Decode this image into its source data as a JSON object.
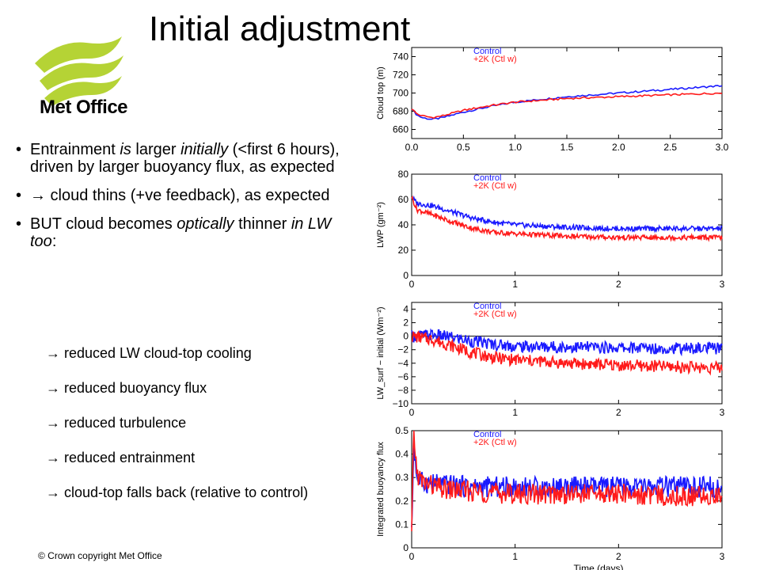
{
  "slide": {
    "title": "Initial adjustment",
    "logo_text": "Met Office",
    "copyright": "© Crown copyright   Met Office",
    "colors": {
      "control": "#1a1aff",
      "warm": "#ff1a1a",
      "logo_green": "#b5d335"
    },
    "bullets": [
      {
        "parts": [
          "Entrainment ",
          "is",
          " larger ",
          "initially",
          " (<first 6 hours), driven by larger buoyancy flux, as expected"
        ]
      },
      {
        "text": "→ cloud thins (+ve feedback), as expected"
      },
      {
        "parts": [
          "BUT cloud becomes ",
          "optically",
          " thinner ",
          "in LW too",
          ":"
        ]
      }
    ],
    "sub_items": [
      "→ reduced LW cloud-top cooling",
      "→ reduced buoyancy flux",
      "→ reduced turbulence",
      "→ reduced entrainment",
      "→ cloud-top falls back (relative to control)"
    ]
  },
  "chart_data": [
    {
      "type": "line",
      "ylabel": "Cloud top (m)",
      "xlim": [
        0,
        3
      ],
      "ylim": [
        650,
        750
      ],
      "xticks": [
        "0.0",
        "0.5",
        "1.0",
        "1.5",
        "2.0",
        "2.5",
        "3.0"
      ],
      "xtick_values": [
        0,
        0.5,
        1,
        1.5,
        2,
        2.5,
        3
      ],
      "yticks": [
        660,
        680,
        700,
        720,
        740
      ],
      "series": [
        {
          "name": "Control",
          "color": "#1a1aff",
          "x": [
            0,
            0.05,
            0.1,
            0.2,
            0.3,
            0.5,
            0.75,
            1.0,
            1.25,
            1.5,
            1.75,
            2.0,
            2.25,
            2.5,
            2.75,
            3.0
          ],
          "y": [
            683,
            676,
            673,
            671,
            673,
            679,
            685,
            690,
            693,
            696,
            698,
            700,
            702,
            704,
            706,
            708
          ]
        },
        {
          "name": "+2K (Ctl w)",
          "color": "#ff1a1a",
          "x": [
            0,
            0.05,
            0.1,
            0.2,
            0.3,
            0.5,
            0.75,
            1.0,
            1.25,
            1.5,
            1.75,
            2.0,
            2.25,
            2.5,
            2.75,
            3.0
          ],
          "y": [
            683,
            677,
            675,
            673,
            675,
            681,
            686,
            690,
            692,
            694,
            695,
            696,
            697,
            698,
            699,
            700
          ]
        }
      ]
    },
    {
      "type": "line",
      "ylabel": "LWP (gm⁻²)",
      "xlim": [
        0,
        3
      ],
      "ylim": [
        0,
        80
      ],
      "xticks": [
        "0",
        "1",
        "2",
        "3"
      ],
      "xtick_values": [
        0,
        1,
        2,
        3
      ],
      "yticks": [
        0,
        20,
        40,
        60,
        80
      ],
      "series": [
        {
          "name": "Control",
          "color": "#1a1aff",
          "x": [
            0,
            0.05,
            0.2,
            0.4,
            0.6,
            0.8,
            1.0,
            1.5,
            2.0,
            2.5,
            3.0
          ],
          "y": [
            62,
            57,
            55,
            50,
            45,
            42,
            40,
            38,
            37,
            37,
            37
          ]
        },
        {
          "name": "+2K (Ctl w)",
          "color": "#ff1a1a",
          "x": [
            0,
            0.05,
            0.2,
            0.4,
            0.6,
            0.8,
            1.0,
            1.5,
            2.0,
            2.5,
            3.0
          ],
          "y": [
            62,
            52,
            48,
            42,
            37,
            34,
            33,
            31,
            30,
            30,
            30
          ]
        }
      ]
    },
    {
      "type": "line",
      "ylabel": "LW_surf − initial (Wm⁻²)",
      "xlim": [
        0,
        3
      ],
      "ylim": [
        -10,
        5
      ],
      "xticks": [
        "0",
        "1",
        "2",
        "3"
      ],
      "xtick_values": [
        0,
        1,
        2,
        3
      ],
      "yticks": [
        -10,
        -8,
        -6,
        -4,
        -2,
        0,
        2,
        4
      ],
      "zero_line": true,
      "series": [
        {
          "name": "Control",
          "color": "#1a1aff",
          "x": [
            0,
            0.2,
            0.4,
            0.6,
            0.8,
            1.0,
            1.5,
            2.0,
            2.5,
            3.0
          ],
          "y": [
            0,
            0.2,
            -0.2,
            -0.8,
            -1.2,
            -1.5,
            -1.6,
            -1.7,
            -1.8,
            -1.8
          ]
        },
        {
          "name": "+2K (Ctl w)",
          "color": "#ff1a1a",
          "x": [
            0,
            0.2,
            0.4,
            0.6,
            0.8,
            1.0,
            1.5,
            2.0,
            2.5,
            3.0
          ],
          "y": [
            0,
            -0.5,
            -1.5,
            -2.5,
            -3.2,
            -3.5,
            -4.0,
            -4.3,
            -4.5,
            -4.7
          ]
        }
      ]
    },
    {
      "type": "line",
      "ylabel": "Integrated buoyancy flux",
      "xlabel": "Time (days)",
      "xlim": [
        0,
        3
      ],
      "ylim": [
        0,
        0.5
      ],
      "xticks": [
        "0",
        "1",
        "2",
        "3"
      ],
      "xtick_values": [
        0,
        1,
        2,
        3
      ],
      "yticks": [
        0,
        0.1,
        0.2,
        0.3,
        0.4,
        0.5
      ],
      "ytick_labels": [
        "0",
        "0.1",
        "0.2",
        "0.3",
        "0.4",
        "0.5"
      ],
      "series": [
        {
          "name": "Control",
          "color": "#1a1aff",
          "x": [
            0,
            0.02,
            0.05,
            0.1,
            0.3,
            0.6,
            1.0,
            1.5,
            2.0,
            2.5,
            3.0
          ],
          "y": [
            0.05,
            0.45,
            0.3,
            0.28,
            0.27,
            0.26,
            0.26,
            0.26,
            0.26,
            0.26,
            0.26
          ]
        },
        {
          "name": "+2K (Ctl w)",
          "color": "#ff1a1a",
          "x": [
            0,
            0.02,
            0.05,
            0.1,
            0.3,
            0.6,
            1.0,
            1.5,
            2.0,
            2.5,
            3.0
          ],
          "y": [
            0.05,
            0.5,
            0.32,
            0.28,
            0.25,
            0.24,
            0.23,
            0.23,
            0.23,
            0.22,
            0.22
          ]
        }
      ]
    }
  ]
}
